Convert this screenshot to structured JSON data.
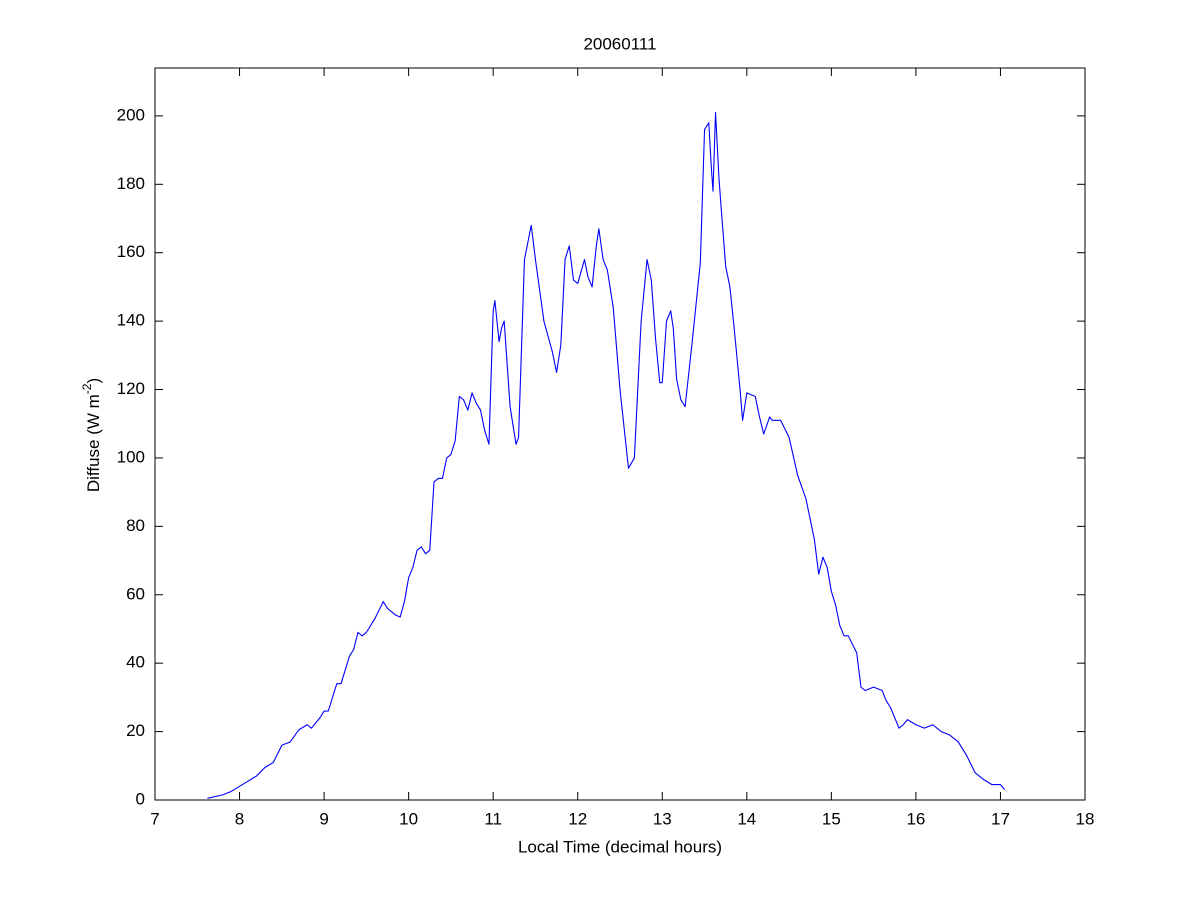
{
  "chart_data": {
    "type": "line",
    "title": "20060111",
    "xlabel": "Local Time (decimal hours)",
    "ylabel": {
      "text": "Diffuse (W m",
      "superscript": "-2",
      "suffix": ")"
    },
    "xlim": [
      7,
      18
    ],
    "ylim": [
      0,
      214
    ],
    "xticks": [
      7,
      8,
      9,
      10,
      11,
      12,
      13,
      14,
      15,
      16,
      17,
      18
    ],
    "yticks": [
      0,
      20,
      40,
      60,
      80,
      100,
      120,
      140,
      160,
      180,
      200
    ],
    "grid": false,
    "color": "#0000ff",
    "x": [
      7.62,
      7.8,
      7.9,
      8.0,
      8.1,
      8.2,
      8.3,
      8.4,
      8.5,
      8.6,
      8.7,
      8.8,
      8.85,
      8.95,
      9.0,
      9.05,
      9.1,
      9.15,
      9.2,
      9.25,
      9.3,
      9.35,
      9.4,
      9.45,
      9.5,
      9.6,
      9.7,
      9.75,
      9.85,
      9.9,
      9.95,
      10.0,
      10.05,
      10.1,
      10.15,
      10.2,
      10.25,
      10.3,
      10.35,
      10.4,
      10.45,
      10.5,
      10.55,
      10.6,
      10.65,
      10.7,
      10.75,
      10.8,
      10.85,
      10.9,
      10.95,
      11.0,
      11.02,
      11.07,
      11.1,
      11.13,
      11.2,
      11.27,
      11.3,
      11.37,
      11.45,
      11.5,
      11.6,
      11.7,
      11.75,
      11.8,
      11.85,
      11.9,
      11.95,
      12.0,
      12.08,
      12.12,
      12.17,
      12.22,
      12.25,
      12.3,
      12.35,
      12.42,
      12.5,
      12.6,
      12.67,
      12.75,
      12.82,
      12.87,
      12.92,
      12.97,
      13.0,
      13.05,
      13.1,
      13.13,
      13.17,
      13.22,
      13.27,
      13.35,
      13.45,
      13.5,
      13.55,
      13.58,
      13.6,
      13.63,
      13.67,
      13.7,
      13.75,
      13.8,
      13.85,
      13.92,
      13.95,
      14.0,
      14.1,
      14.15,
      14.2,
      14.27,
      14.3,
      14.4,
      14.5,
      14.6,
      14.7,
      14.8,
      14.85,
      14.9,
      14.95,
      15.0,
      15.05,
      15.1,
      15.15,
      15.2,
      15.3,
      15.35,
      15.4,
      15.5,
      15.6,
      15.65,
      15.7,
      15.8,
      15.85,
      15.9,
      16.0,
      16.1,
      16.2,
      16.3,
      16.4,
      16.5,
      16.6,
      16.7,
      16.8,
      16.9,
      17.0,
      17.05
    ],
    "y": [
      0.5,
      1.5,
      2.5,
      4,
      5.5,
      7,
      9.5,
      11,
      16,
      17,
      20.5,
      22,
      21,
      24,
      26,
      26,
      30,
      34,
      34,
      38,
      42,
      44,
      49,
      48,
      49,
      53,
      58,
      56,
      54,
      53.5,
      58,
      65,
      68,
      73,
      74,
      72,
      73,
      93,
      94,
      94,
      100,
      101,
      105,
      118,
      117,
      114,
      119,
      116,
      114,
      108,
      104,
      143,
      146,
      134,
      138,
      140,
      115,
      104,
      106,
      158,
      168,
      158,
      140,
      131,
      125,
      133,
      158,
      162,
      152,
      151,
      158,
      153,
      150,
      162,
      167,
      158,
      155,
      144,
      120,
      97,
      100,
      140,
      158,
      152,
      135,
      122,
      122,
      140,
      143,
      138,
      123,
      117,
      115,
      133,
      157,
      196,
      198,
      185,
      178,
      201,
      182,
      172,
      156,
      150,
      138,
      120,
      111,
      119,
      118,
      112,
      107,
      112,
      111,
      111,
      106,
      95,
      88,
      76,
      66,
      71,
      68,
      61,
      57,
      51,
      48,
      48,
      43,
      33,
      32,
      33,
      32,
      29,
      27,
      21,
      22,
      23.5,
      22,
      21,
      22,
      20,
      19,
      17,
      13,
      8,
      6,
      4.5,
      4.5,
      3
    ]
  }
}
